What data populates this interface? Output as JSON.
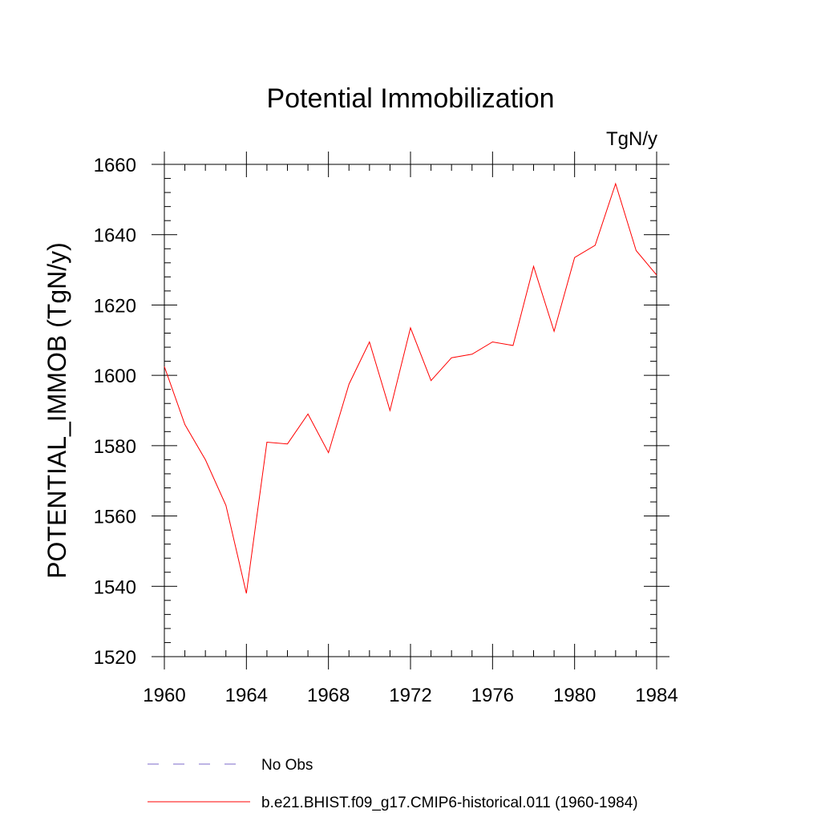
{
  "chart_data": {
    "type": "line",
    "title": "Potential Immobilization",
    "units_label": "TgN/y",
    "ylabel": "POTENTIAL_IMMOB  (TgN/y)",
    "xlabel": "",
    "xlim": [
      1960,
      1984
    ],
    "ylim": [
      1520,
      1660
    ],
    "x_ticks": [
      1960,
      1964,
      1968,
      1972,
      1976,
      1980,
      1984
    ],
    "y_ticks": [
      1520,
      1540,
      1560,
      1580,
      1600,
      1620,
      1640,
      1660
    ],
    "grid": false,
    "legend_position": "bottom",
    "series": [
      {
        "name": "b.e21.BHIST.f09_g17.CMIP6-historical.011 (1960-1984)",
        "color": "#ff0000",
        "style": "solid",
        "x": [
          1960,
          1961,
          1962,
          1963,
          1964,
          1965,
          1966,
          1967,
          1968,
          1969,
          1970,
          1971,
          1972,
          1973,
          1974,
          1975,
          1976,
          1977,
          1978,
          1979,
          1980,
          1981,
          1982,
          1983,
          1984
        ],
        "y": [
          1602.5,
          1586,
          1576,
          1563,
          1538,
          1581,
          1580.5,
          1589,
          1578,
          1597.5,
          1609.5,
          1590,
          1613.5,
          1598.5,
          1605,
          1606,
          1609.5,
          1608.5,
          1631,
          1612.5,
          1633.5,
          1637,
          1654.5,
          1635.5,
          1628.5
        ]
      }
    ],
    "legend": [
      {
        "label": "No Obs",
        "color": "#7b68c8",
        "style": "dashed"
      },
      {
        "label": "b.e21.BHIST.f09_g17.CMIP6-historical.011 (1960-1984)",
        "color": "#ff0000",
        "style": "solid"
      }
    ]
  }
}
